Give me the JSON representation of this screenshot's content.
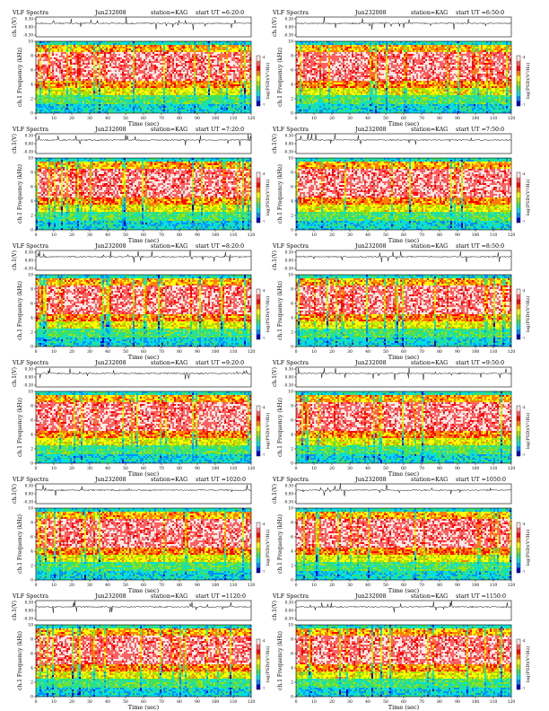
{
  "page": {
    "panel_title": "VLF Spectra",
    "xlabel": "Time (sec)",
    "ylabel_waveform": "ch.1(V)",
    "ylabel_spectrogram": "ch.1 Frequency (kHz)",
    "colorbar_label": "log(PSD)(V²/Hz)"
  },
  "colors": {
    "colormap": [
      "#0000cc",
      "#0090ff",
      "#00e0e0",
      "#40e060",
      "#a8e000",
      "#ffff00",
      "#ff8000",
      "#ff0000",
      "#ff6060",
      "#ffe8e8"
    ],
    "background": "#ffffff",
    "waveform_line": "#000000"
  },
  "panels": [
    {
      "date": "Jun232008",
      "station": "station=KAG",
      "start": "start UT =6:20:0"
    },
    {
      "date": "Jun232008",
      "station": "station=KAG",
      "start": "start UT =6:50:0"
    },
    {
      "date": "Jun232008",
      "station": "station=KAG",
      "start": "start UT =7:20:0"
    },
    {
      "date": "Jun232008",
      "station": "station=KAG",
      "start": "start UT =7:50:0"
    },
    {
      "date": "Jun232008",
      "station": "station=KAG",
      "start": "start UT =8:20:0"
    },
    {
      "date": "Jun232008",
      "station": "station=KAG",
      "start": "start UT =8:50:0"
    },
    {
      "date": "Jun232008",
      "station": "station=KAG",
      "start": "start UT =9:20:0"
    },
    {
      "date": "Jun232008",
      "station": "station=KAG",
      "start": "start UT =9:50:0"
    },
    {
      "date": "Jun232008",
      "station": "station=KAG",
      "start": "start UT =1020:0"
    },
    {
      "date": "Jun232008",
      "station": "station=KAG",
      "start": "start UT =1050:0"
    },
    {
      "date": "Jun232008",
      "station": "station=KAG",
      "start": "start UT =1120:0"
    },
    {
      "date": "Jun232008",
      "station": "station=KAG",
      "start": "start UT =1150:0"
    }
  ],
  "chart_data": {
    "type": "heatmap",
    "description_count": 12,
    "xlabel": "Time (sec)",
    "ylabel": "ch.1 Frequency (kHz)",
    "xlim": [
      0,
      120
    ],
    "ylim": [
      0,
      10
    ],
    "x_ticks": [
      0,
      10,
      20,
      30,
      40,
      50,
      60,
      70,
      80,
      90,
      100,
      110,
      120
    ],
    "y_ticks": [
      0,
      2,
      4,
      6,
      8,
      10
    ],
    "waveform": {
      "ylabel": "ch.1(V)",
      "ylim": [
        -0.3,
        0.3
      ],
      "y_ticks": [
        "0.30",
        "0.00",
        "-0.30"
      ]
    },
    "colorbar": {
      "label": "log(PSD)(V²/Hz)",
      "range": [
        -7,
        -4
      ],
      "ticks": [
        "-4",
        "-7"
      ]
    },
    "frequency_bands": [
      {
        "from_khz": 0,
        "to_khz": 2.5,
        "level": "low (green/cyan)"
      },
      {
        "from_khz": 2.5,
        "to_khz": 4.5,
        "level": "medium (yellow/green)"
      },
      {
        "from_khz": 4.5,
        "to_khz": 8.5,
        "level": "high (red/white)"
      },
      {
        "from_khz": 8.5,
        "to_khz": 9.5,
        "level": "medium (yellow/orange)"
      },
      {
        "from_khz": 9.5,
        "to_khz": 10,
        "level": "low (cyan)"
      }
    ]
  }
}
